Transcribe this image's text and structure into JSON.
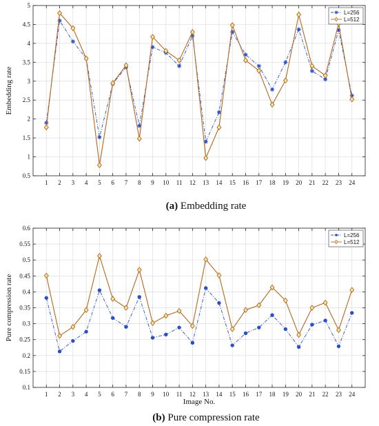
{
  "chart_data": [
    {
      "type": "line",
      "title": "",
      "caption_letter": "(a)",
      "caption_text": "Embedding rate",
      "xlabel": "",
      "ylabel": "Embedding rate",
      "x": [
        1,
        2,
        3,
        4,
        5,
        6,
        7,
        8,
        9,
        10,
        11,
        12,
        13,
        14,
        15,
        16,
        17,
        18,
        19,
        20,
        21,
        22,
        23,
        24
      ],
      "ylim": [
        0.5,
        5
      ],
      "yticks": [
        0.5,
        1,
        1.5,
        2,
        2.5,
        3,
        3.5,
        4,
        4.5,
        5
      ],
      "grid": true,
      "legend_position": "top-right",
      "series": [
        {
          "name": "L=256",
          "color": "#2b4fc4",
          "marker": "asterisk",
          "line_style": "dash-dot",
          "values": [
            1.9,
            4.6,
            4.05,
            3.6,
            1.52,
            2.93,
            3.37,
            1.82,
            3.9,
            3.75,
            3.4,
            4.2,
            1.4,
            2.18,
            4.3,
            3.7,
            3.4,
            2.78,
            3.5,
            4.37,
            3.27,
            3.05,
            4.35,
            2.62
          ]
        },
        {
          "name": "L=512",
          "color": "#b5651d",
          "marker": "diamond",
          "line_style": "solid",
          "values": [
            1.78,
            4.8,
            4.4,
            3.6,
            0.78,
            2.95,
            3.42,
            1.48,
            4.17,
            3.8,
            3.55,
            4.3,
            0.97,
            1.78,
            4.48,
            3.55,
            3.28,
            2.38,
            3.02,
            4.76,
            3.4,
            3.15,
            4.52,
            2.52
          ]
        }
      ]
    },
    {
      "type": "line",
      "title": "",
      "caption_letter": "(b)",
      "caption_text": "Pure compression rate",
      "xlabel": "Image No.",
      "ylabel": "Pure compression rate",
      "x": [
        1,
        2,
        3,
        4,
        5,
        6,
        7,
        8,
        9,
        10,
        11,
        12,
        13,
        14,
        15,
        16,
        17,
        18,
        19,
        20,
        21,
        22,
        23,
        24
      ],
      "ylim": [
        0.1,
        0.6
      ],
      "yticks": [
        0.1,
        0.15,
        0.2,
        0.25,
        0.3,
        0.35,
        0.4,
        0.45,
        0.5,
        0.55,
        0.6
      ],
      "grid": true,
      "legend_position": "top-right",
      "series": [
        {
          "name": "L=256",
          "color": "#2b4fc4",
          "marker": "dot",
          "line_style": "dash-dot",
          "values": [
            0.381,
            0.213,
            0.246,
            0.275,
            0.405,
            0.318,
            0.29,
            0.384,
            0.256,
            0.266,
            0.288,
            0.24,
            0.412,
            0.365,
            0.232,
            0.27,
            0.288,
            0.327,
            0.283,
            0.227,
            0.297,
            0.31,
            0.229,
            0.334
          ]
        },
        {
          "name": "L=512",
          "color": "#b5651d",
          "marker": "diamond",
          "line_style": "solid",
          "values": [
            0.451,
            0.262,
            0.29,
            0.343,
            0.513,
            0.378,
            0.35,
            0.469,
            0.302,
            0.325,
            0.34,
            0.293,
            0.502,
            0.452,
            0.283,
            0.343,
            0.358,
            0.414,
            0.373,
            0.265,
            0.35,
            0.366,
            0.28,
            0.406
          ]
        }
      ]
    }
  ]
}
